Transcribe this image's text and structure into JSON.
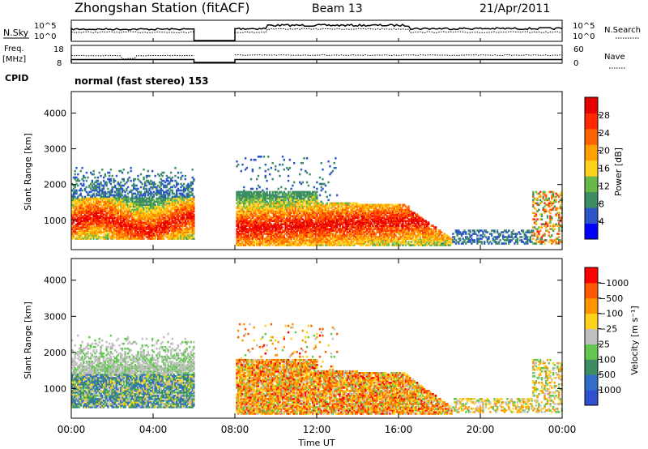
{
  "header": {
    "station": "Zhongshan Station (fitACF)",
    "beam": "Beam 13",
    "date": "21/Apr/2011"
  },
  "colors": {
    "power_scale": [
      "#0000ff",
      "#2b55c8",
      "#3c8c64",
      "#69b84a",
      "#ffd21e",
      "#ffa000",
      "#ff6400",
      "#ff2800",
      "#e60000"
    ],
    "velocity_scale": [
      "#3050d0",
      "#306ec8",
      "#3c8c64",
      "#64c850",
      "#bfbfbf",
      "#ffd21e",
      "#ff9600",
      "#ff5a00",
      "#ff0000"
    ]
  },
  "panels": {
    "nsky": {
      "label": "N.Sky",
      "right_label": "N.Search",
      "left_ticks": [
        "10^5",
        "10^0"
      ],
      "right_ticks": [
        "10^5",
        "10^0"
      ]
    },
    "freq": {
      "label": "Freq.",
      "unit": "[MHz]",
      "right_label": "Nave",
      "left_ticks": [
        "18",
        "8"
      ],
      "right_ticks": [
        "60",
        "0"
      ]
    },
    "cpid": {
      "label": "CPID",
      "text": "normal (fast stereo) 153"
    }
  },
  "chart_data": [
    {
      "type": "heatmap",
      "name": "power",
      "ylabel": "Slant Range [km]",
      "yticks": [
        1000,
        2000,
        3000,
        4000
      ],
      "ylim": [
        180,
        4600
      ],
      "xlim": [
        0,
        24
      ],
      "colorbar": {
        "label": "Power [dB]",
        "ticks": [
          "4",
          "8",
          "12",
          "16",
          "20",
          "24",
          "28"
        ],
        "range": [
          0,
          32
        ]
      },
      "data_gap_hours": [
        6,
        8
      ]
    },
    {
      "type": "heatmap",
      "name": "velocity",
      "ylabel": "Slant Range [km]",
      "yticks": [
        1000,
        2000,
        3000,
        4000
      ],
      "ylim": [
        180,
        4600
      ],
      "xlim": [
        0,
        24
      ],
      "colorbar": {
        "label": "Velocity [m s⁻¹]",
        "ticks": [
          "1000",
          "500",
          "100",
          "25",
          "−25",
          "−100",
          "−500",
          "−1000"
        ]
      },
      "data_gap_hours": [
        6,
        8
      ]
    }
  ],
  "xaxis": {
    "ticks": [
      "00:00",
      "04:00",
      "08:00",
      "12:00",
      "16:00",
      "20:00",
      "00:00"
    ],
    "label": "Time UT"
  }
}
